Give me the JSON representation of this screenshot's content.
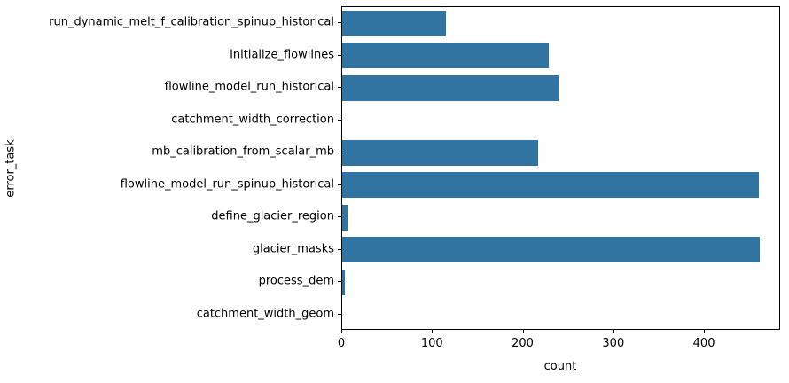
{
  "figure": {
    "background": "#ffffff",
    "bar_color": "#3274a1",
    "spine_color": "#000000"
  },
  "axes": {
    "xlabel": "count",
    "ylabel": "error_task"
  },
  "chart_data": {
    "type": "bar",
    "orientation": "horizontal",
    "title": "",
    "xlabel": "count",
    "ylabel": "error_task",
    "categories": [
      "run_dynamic_melt_f_calibration_spinup_historical",
      "initialize_flowlines",
      "flowline_model_run_historical",
      "catchment_width_correction",
      "mb_calibration_from_scalar_mb",
      "flowline_model_run_spinup_historical",
      "define_glacier_region",
      "glacier_masks",
      "process_dem",
      "catchment_width_geom"
    ],
    "values": [
      114,
      228,
      239,
      0,
      216,
      460,
      6,
      461,
      3,
      0
    ],
    "xlim": [
      0,
      484
    ],
    "xticks": [
      0,
      100,
      200,
      300,
      400
    ],
    "grid": false,
    "legend": null,
    "bar_color": "#3274a1"
  }
}
